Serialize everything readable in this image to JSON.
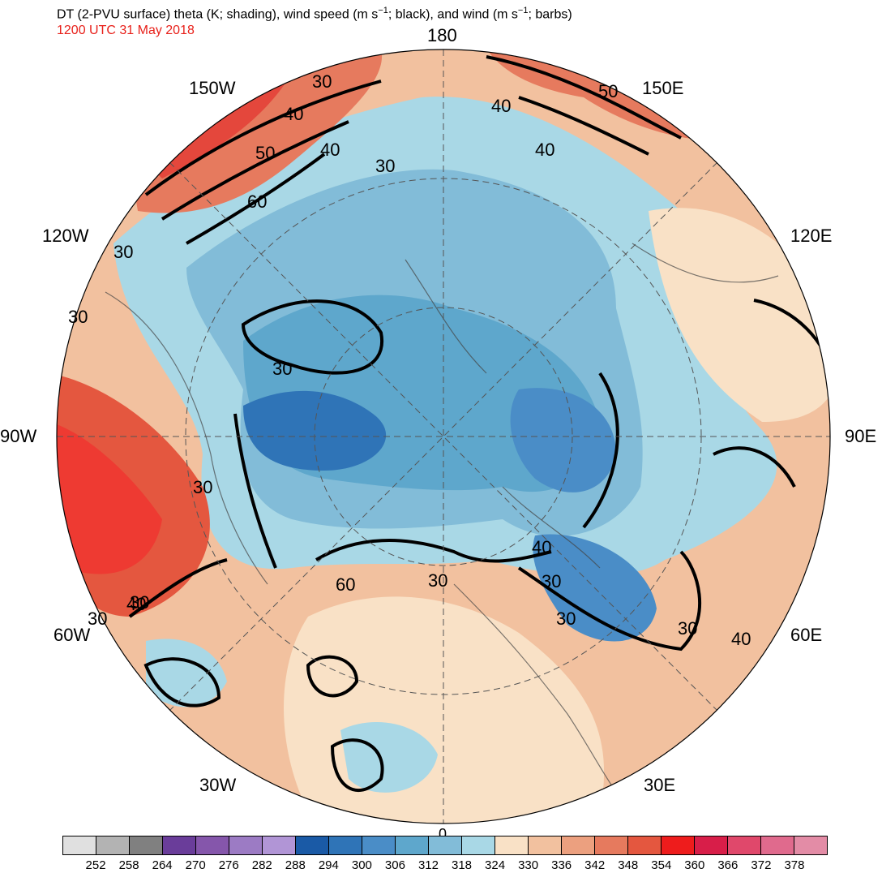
{
  "title": {
    "main_before_sup1": "DT (2-PVU surface) theta (K; shading), wind speed (m s",
    "sup": "−1",
    "main_mid": "; black), and wind (m s",
    "main_after": "; barbs)",
    "datetime": "1200 UTC 31 May 2018"
  },
  "longitude_labels": {
    "top": "180",
    "top_left": "150W",
    "top_right": "150E",
    "upper_left": "120W",
    "upper_right": "120E",
    "left": "90W",
    "right": "90E",
    "lower_left": "60W",
    "lower_right": "60E",
    "bottom_left": "30W",
    "bottom_right": "30E",
    "bottom": "0"
  },
  "contour_labels": [
    "30",
    "40",
    "50",
    "60",
    "40",
    "30",
    "40",
    "50",
    "40",
    "30",
    "30",
    "30",
    "30",
    "60",
    "30",
    "40",
    "30",
    "30",
    "30",
    "40",
    "40",
    "30",
    "30"
  ],
  "colorbar": {
    "colors": [
      "#e0e0e0",
      "#b3b3b3",
      "#808080",
      "#6a3d9a",
      "#8556ab",
      "#9c7bc4",
      "#b195d6",
      "#1a5aa6",
      "#2f74b7",
      "#4a8dc7",
      "#5ea7cc",
      "#82bcd8",
      "#a9d8e6",
      "#f9e1c6",
      "#f2c19f",
      "#eca07f",
      "#e67a5e",
      "#e4573f",
      "#ee1c1c",
      "#d81e49",
      "#e0486b",
      "#e06a8d",
      "#e38ca6"
    ],
    "labels": [
      "252",
      "258",
      "264",
      "270",
      "276",
      "282",
      "288",
      "294",
      "300",
      "306",
      "312",
      "318",
      "324",
      "330",
      "336",
      "342",
      "348",
      "354",
      "360",
      "366",
      "372",
      "378"
    ]
  },
  "theme": {
    "warm": "#e98a6e",
    "hot": "#e4473c",
    "cool_light": "#a9d8e6",
    "cool_mid": "#5ea7cc",
    "cool_dark": "#2f74b7",
    "neutral": "#f9e1c6"
  }
}
